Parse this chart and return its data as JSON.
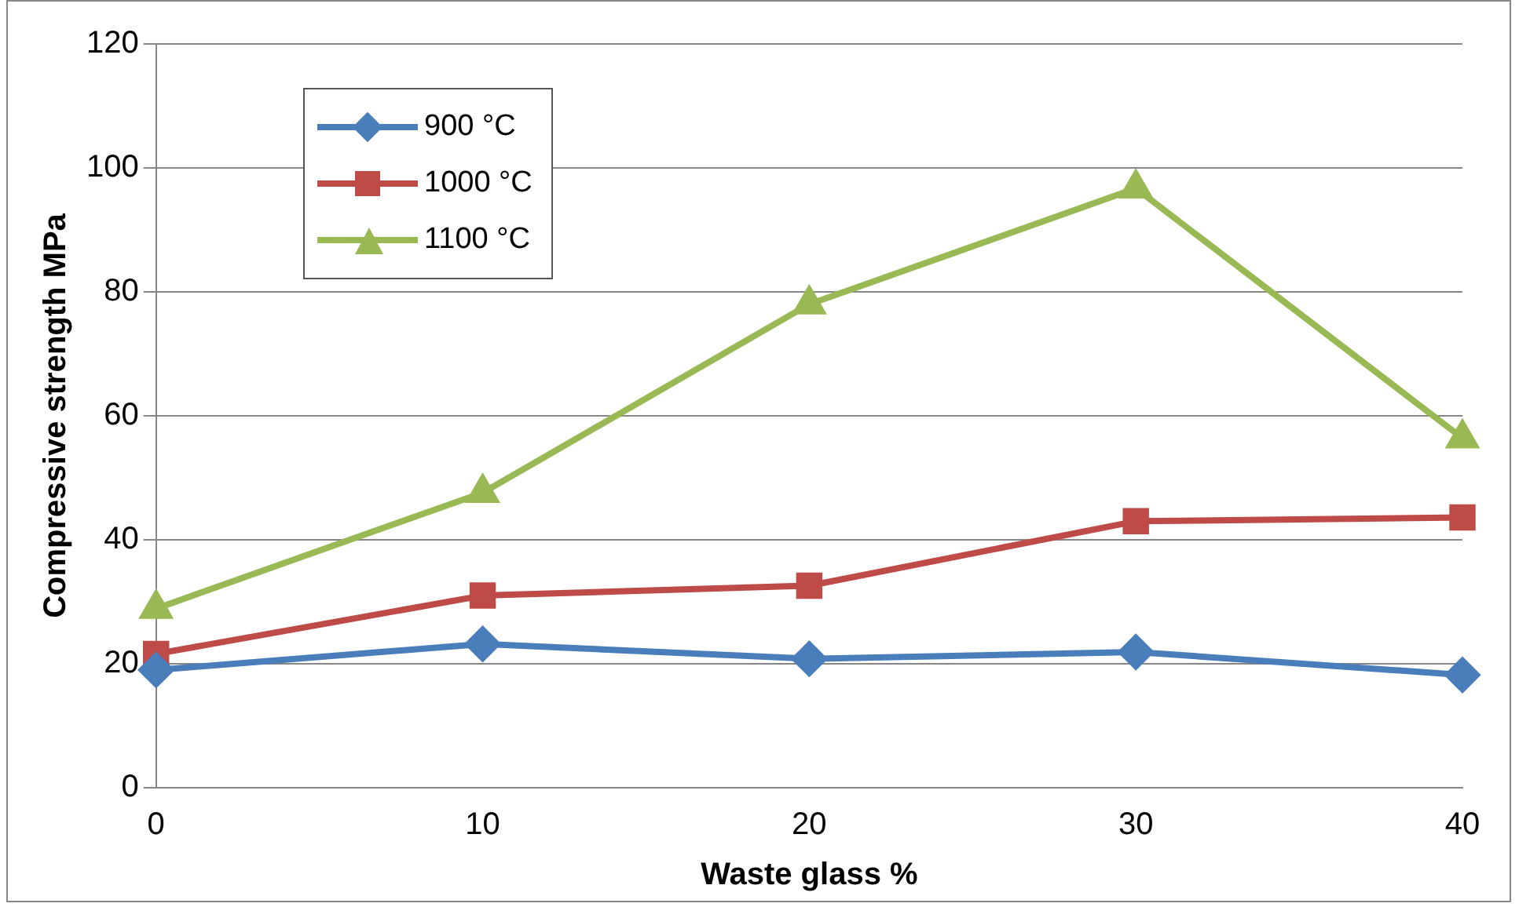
{
  "chart_data": {
    "type": "line",
    "xlabel": "Waste glass %",
    "ylabel": "Compressive strength MPa",
    "categories": [
      "0",
      "10",
      "20",
      "30",
      "40"
    ],
    "series": [
      {
        "name": "900 °C",
        "color": "#4a7ebb",
        "marker": "diamond",
        "values": [
          19.0,
          23.2,
          20.8,
          21.9,
          18.2
        ]
      },
      {
        "name": "1000 °C",
        "color": "#be4b48",
        "marker": "square",
        "values": [
          21.6,
          31.0,
          32.6,
          43.0,
          43.6
        ]
      },
      {
        "name": "1100 °C",
        "color": "#98b954",
        "marker": "triangle",
        "values": [
          28.9,
          47.6,
          78.0,
          96.7,
          56.4
        ]
      }
    ],
    "ylim": [
      0,
      120
    ],
    "yticks": [
      0,
      20,
      40,
      60,
      80,
      100,
      120
    ],
    "grid": "y",
    "legend": "top left",
    "line_style": "solid"
  }
}
